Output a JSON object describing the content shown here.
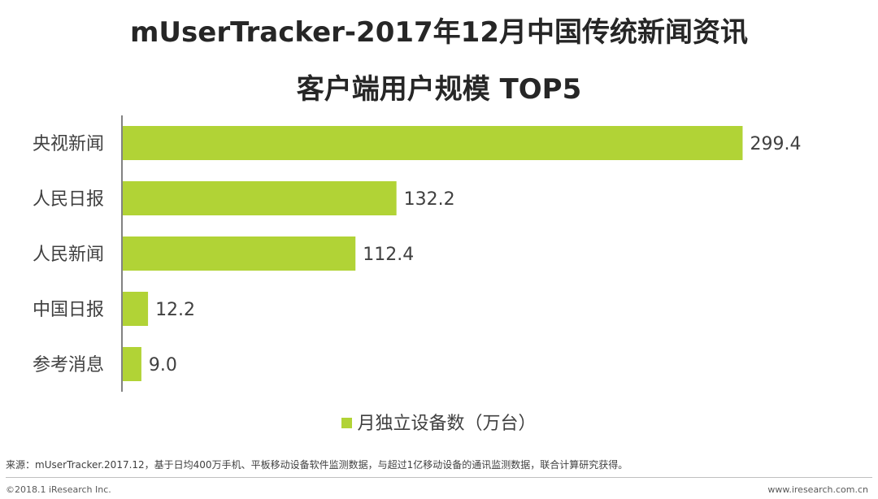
{
  "title_line_1": "mUserTracker-2017年12月中国传统新闻资讯",
  "title_line_2": "客户端用户规模  TOP5",
  "chart_data": {
    "type": "bar",
    "orientation": "horizontal",
    "categories": [
      "央视新闻",
      "人民日报",
      "人民新闻",
      "中国日报",
      "参考消息"
    ],
    "series": [
      {
        "name": "月独立设备数（万台）",
        "values": [
          299.4,
          132.2,
          112.4,
          12.2,
          9.0
        ],
        "value_labels": [
          "299.4",
          "132.2",
          "112.4",
          "12.2",
          "9.0"
        ]
      }
    ],
    "xlim": [
      0,
      300
    ],
    "grid": false,
    "legend_position": "bottom",
    "bar_color": "#b1d336"
  },
  "legend": {
    "label": "月独立设备数（万台）"
  },
  "footer": {
    "source": "来源：mUserTracker.2017.12，基于日均400万手机、平板移动设备软件监测数据，与超过1亿移动设备的通讯监测数据，联合计算研究获得。",
    "copyright": "©2018.1 iResearch Inc.",
    "website": "www.iresearch.com.cn"
  }
}
